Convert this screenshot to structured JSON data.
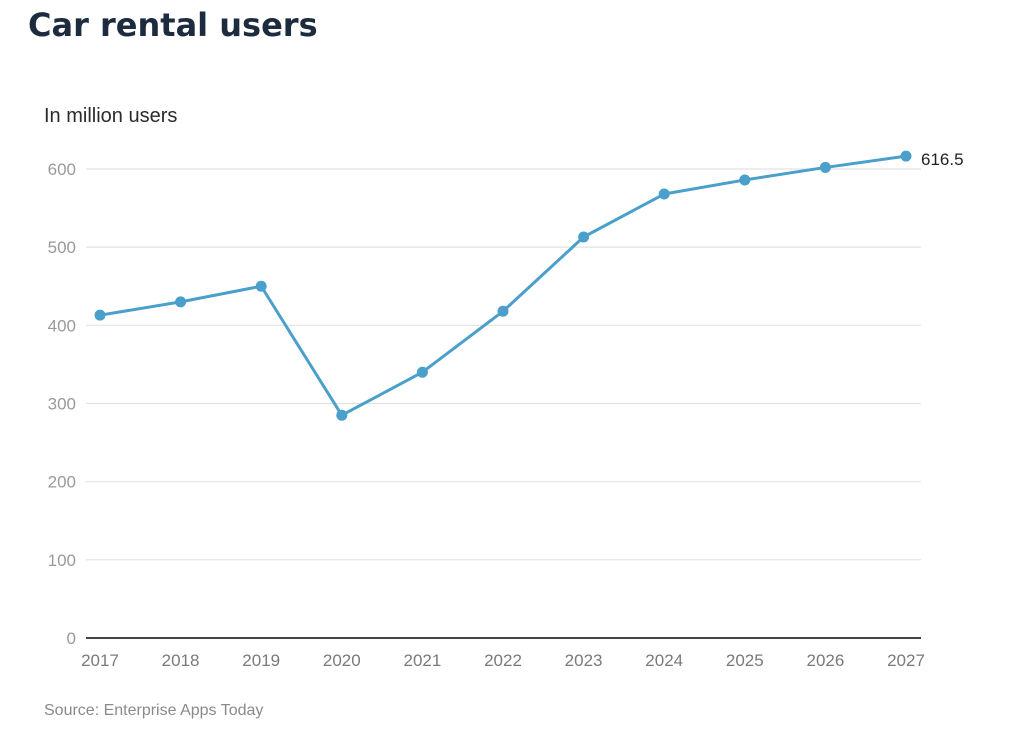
{
  "header": {
    "title": "Car rental users",
    "subtitle": "In million users"
  },
  "footer": {
    "source": "Source: Enterprise Apps Today"
  },
  "colors": {
    "line": "#4a9fcb",
    "grid": "#e2e2e2",
    "axis": "#444444"
  },
  "chart_data": {
    "type": "line",
    "title": "Car rental users",
    "subtitle": "In million users",
    "xlabel": "",
    "ylabel": "In million users",
    "categories": [
      "2017",
      "2018",
      "2019",
      "2020",
      "2021",
      "2022",
      "2023",
      "2024",
      "2025",
      "2026",
      "2027"
    ],
    "series": [
      {
        "name": "Car rental users",
        "values": [
          413,
          430,
          450,
          285,
          340,
          418,
          513,
          568,
          586,
          602,
          616.5
        ]
      }
    ],
    "ylim": [
      0,
      600
    ],
    "yticks": [
      "0",
      "100",
      "200",
      "300",
      "400",
      "500",
      "600"
    ],
    "grid": true,
    "legend": "none",
    "annotations": [
      {
        "category": "2027",
        "text": "616.5"
      }
    ],
    "source": "Source: Enterprise Apps Today"
  }
}
